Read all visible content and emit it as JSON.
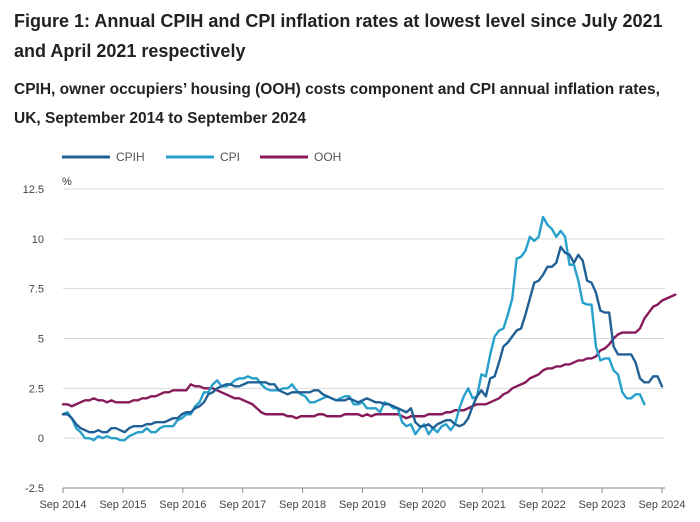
{
  "title": "Figure 1: Annual CPIH and CPI inflation rates at lowest level since July 2021 and April 2021 respectively",
  "subtitle": "CPIH, owner occupiers’ housing (OOH) costs component and CPI annual inflation rates, UK, September 2014 to September 2024",
  "chart_data": {
    "type": "line",
    "ylabel": "%",
    "ylim": [
      -2.5,
      12.5
    ],
    "yticks": [
      -2.5,
      0,
      2.5,
      5,
      7.5,
      10,
      12.5
    ],
    "ytick_labels": [
      "-2.5",
      "0",
      "2.5",
      "5",
      "7.5",
      "10",
      "12.5"
    ],
    "xticks": [
      "Sep 2014",
      "Sep 2015",
      "Sep 2016",
      "Sep 2017",
      "Sep 2018",
      "Sep 2019",
      "Sep 2020",
      "Sep 2021",
      "Sep 2022",
      "Sep 2023",
      "Sep 2024"
    ],
    "grid": "horizontal",
    "legend": "top-left",
    "x_start": "Sep 2014",
    "x_end": "Sep 2024",
    "series": [
      {
        "name": "CPIH",
        "color": "#206095",
        "values": [
          1.2,
          1.2,
          1.0,
          0.7,
          0.5,
          0.4,
          0.3,
          0.3,
          0.4,
          0.3,
          0.3,
          0.5,
          0.5,
          0.4,
          0.3,
          0.5,
          0.6,
          0.6,
          0.6,
          0.7,
          0.7,
          0.8,
          0.8,
          0.8,
          0.9,
          1.0,
          1.0,
          1.2,
          1.3,
          1.3,
          1.5,
          1.6,
          1.8,
          2.2,
          2.3,
          2.5,
          2.6,
          2.7,
          2.7,
          2.6,
          2.6,
          2.7,
          2.8,
          2.8,
          2.8,
          2.8,
          2.8,
          2.7,
          2.7,
          2.4,
          2.3,
          2.2,
          2.3,
          2.3,
          2.3,
          2.3,
          2.3,
          2.4,
          2.4,
          2.2,
          2.1,
          2.0,
          1.9,
          1.9,
          1.9,
          2.0,
          1.9,
          1.8,
          1.9,
          2.0,
          1.9,
          1.8,
          1.8,
          1.7,
          1.7,
          1.6,
          1.5,
          1.4,
          1.3,
          1.5,
          0.8,
          0.6,
          0.6,
          0.7,
          0.5,
          0.7,
          0.8,
          0.9,
          0.9,
          0.7,
          0.6,
          0.7,
          1.0,
          1.6,
          2.1,
          2.4,
          2.1,
          3.0,
          3.1,
          3.8,
          4.6,
          4.8,
          5.1,
          5.4,
          5.5,
          6.2,
          7.0,
          7.8,
          7.9,
          8.2,
          8.6,
          8.6,
          8.8,
          9.6,
          9.3,
          9.2,
          8.8,
          9.2,
          8.9,
          7.9,
          7.8,
          7.3,
          6.4,
          6.3,
          6.3,
          4.6,
          4.2,
          4.2,
          4.2,
          4.2,
          3.8,
          3.0,
          2.8,
          2.8,
          3.1,
          3.1,
          2.6
        ]
      },
      {
        "name": "CPI",
        "color": "#27a0cc",
        "values": [
          1.2,
          1.3,
          1.0,
          0.5,
          0.3,
          0.0,
          0.0,
          -0.1,
          0.1,
          0.0,
          0.1,
          0.0,
          0.0,
          -0.1,
          -0.1,
          0.1,
          0.2,
          0.3,
          0.3,
          0.5,
          0.3,
          0.3,
          0.5,
          0.6,
          0.6,
          0.6,
          0.9,
          1.0,
          1.2,
          1.2,
          1.6,
          1.8,
          2.3,
          2.3,
          2.7,
          2.9,
          2.6,
          2.6,
          2.7,
          2.9,
          3.0,
          3.0,
          3.1,
          3.0,
          3.0,
          2.7,
          2.5,
          2.4,
          2.4,
          2.4,
          2.5,
          2.5,
          2.7,
          2.4,
          2.2,
          2.1,
          1.8,
          1.8,
          1.9,
          2.0,
          2.1,
          2.0,
          1.9,
          2.0,
          2.1,
          2.1,
          1.7,
          1.7,
          1.8,
          1.5,
          1.5,
          1.5,
          1.3,
          1.8,
          1.7,
          1.5,
          1.5,
          0.8,
          0.6,
          0.7,
          0.2,
          0.5,
          0.7,
          0.2,
          0.5,
          0.3,
          0.6,
          0.7,
          0.4,
          0.7,
          1.5,
          2.1,
          2.5,
          2.0,
          2.1,
          3.2,
          3.1,
          4.2,
          5.1,
          5.4,
          5.5,
          6.2,
          7.0,
          9.0,
          9.1,
          9.4,
          10.1,
          9.9,
          10.1,
          11.1,
          10.7,
          10.5,
          10.1,
          10.4,
          10.1,
          8.7,
          8.7,
          7.9,
          6.8,
          6.7,
          6.7,
          4.6,
          3.9,
          4.0,
          4.0,
          3.4,
          3.2,
          2.3,
          2.0,
          2.0,
          2.2,
          2.2,
          1.7
        ]
      },
      {
        "name": "OOH",
        "color": "#871a5b",
        "values": [
          1.7,
          1.7,
          1.6,
          1.7,
          1.8,
          1.9,
          1.9,
          2.0,
          1.9,
          1.9,
          1.8,
          1.9,
          1.8,
          1.8,
          1.8,
          1.8,
          1.9,
          1.9,
          2.0,
          2.0,
          2.1,
          2.1,
          2.2,
          2.3,
          2.3,
          2.4,
          2.4,
          2.4,
          2.4,
          2.7,
          2.6,
          2.6,
          2.5,
          2.5,
          2.5,
          2.4,
          2.3,
          2.2,
          2.1,
          2.0,
          2.0,
          1.9,
          1.8,
          1.7,
          1.5,
          1.3,
          1.2,
          1.2,
          1.2,
          1.2,
          1.2,
          1.1,
          1.1,
          1.0,
          1.1,
          1.1,
          1.1,
          1.1,
          1.2,
          1.2,
          1.1,
          1.1,
          1.1,
          1.1,
          1.2,
          1.2,
          1.2,
          1.2,
          1.1,
          1.2,
          1.1,
          1.2,
          1.2,
          1.2,
          1.2,
          1.2,
          1.2,
          1.1,
          1.0,
          1.1,
          1.1,
          1.1,
          1.1,
          1.2,
          1.2,
          1.2,
          1.2,
          1.3,
          1.3,
          1.4,
          1.4,
          1.4,
          1.5,
          1.6,
          1.7,
          1.7,
          1.7,
          1.8,
          1.9,
          2.0,
          2.2,
          2.3,
          2.5,
          2.6,
          2.7,
          2.8,
          3.0,
          3.1,
          3.2,
          3.4,
          3.5,
          3.5,
          3.6,
          3.6,
          3.7,
          3.7,
          3.8,
          3.9,
          3.9,
          4.0,
          4.0,
          4.1,
          4.4,
          4.5,
          4.7,
          5.0,
          5.2,
          5.3,
          5.3,
          5.3,
          5.3,
          5.5,
          6.0,
          6.3,
          6.6,
          6.7,
          6.9,
          7.0,
          7.1,
          7.2
        ]
      }
    ]
  }
}
